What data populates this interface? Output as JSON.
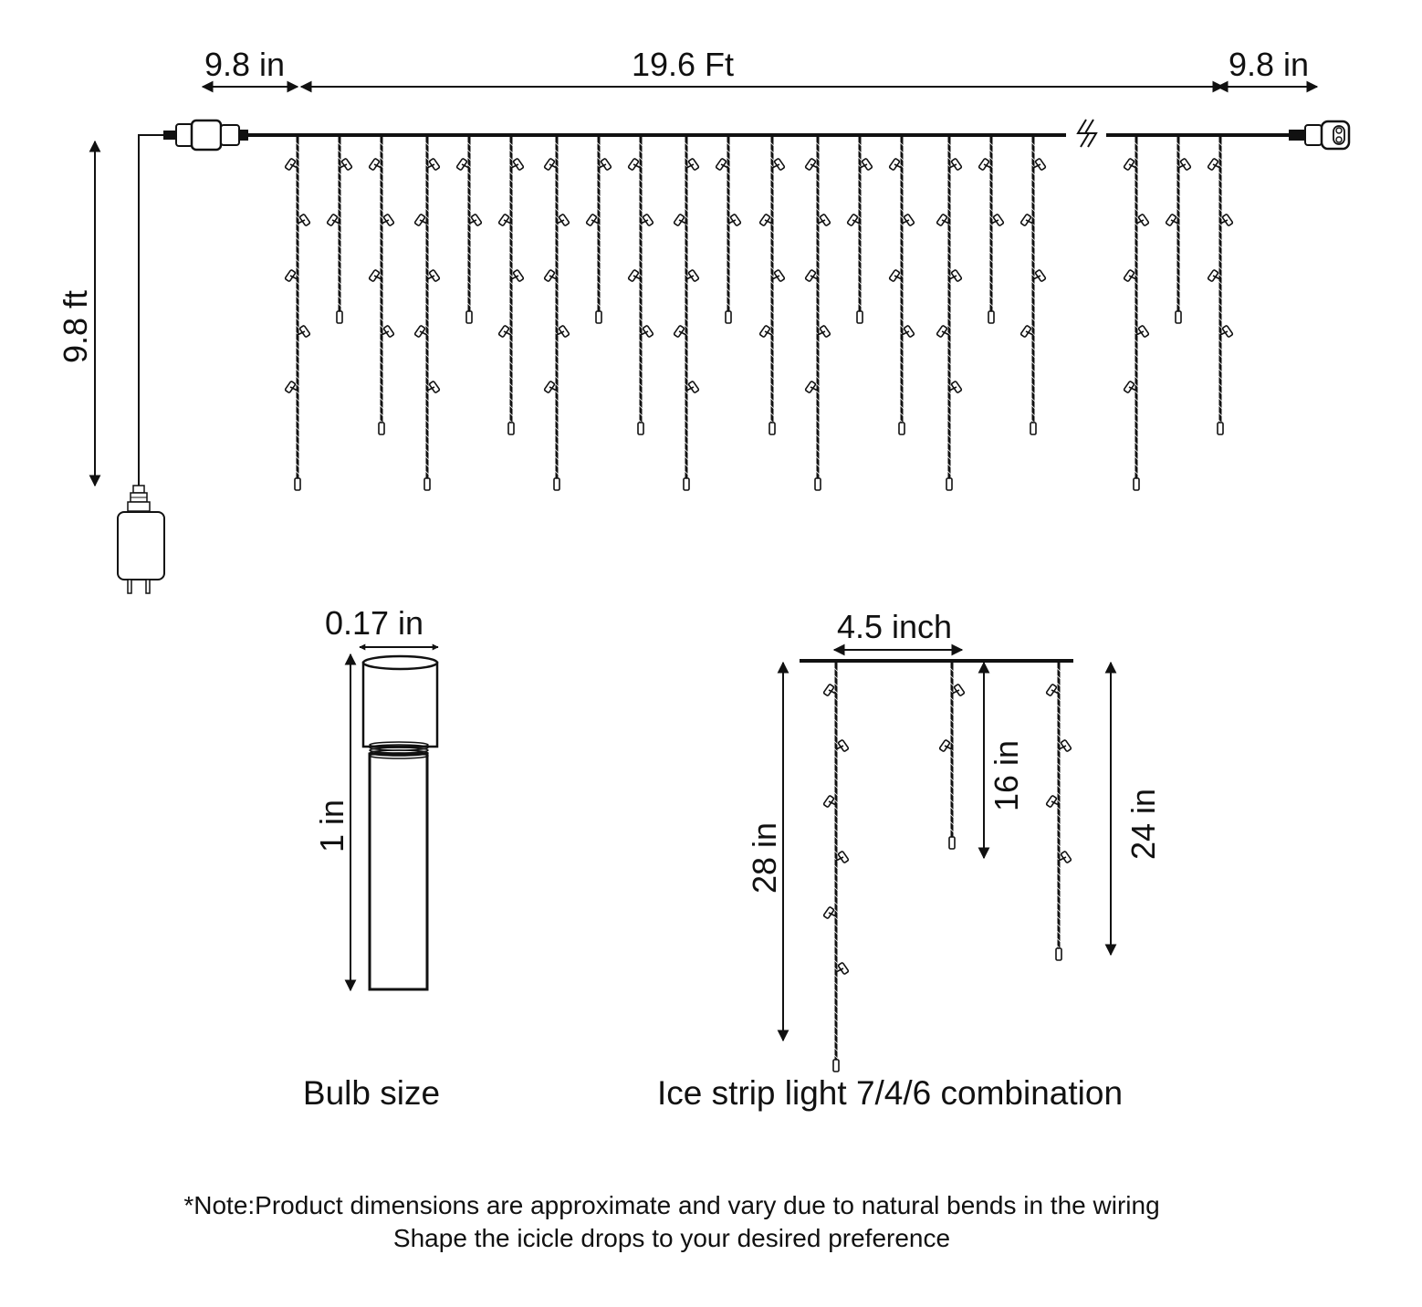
{
  "main_diagram": {
    "left_lead_label": "9.8 in",
    "span_label": "19.6 Ft",
    "right_lead_label": "9.8 in",
    "drop_cord_label": "9.8 ft"
  },
  "bulb_diagram": {
    "width_label": "0.17 in",
    "height_label": "1 in",
    "caption": "Bulb size"
  },
  "combo_diagram": {
    "spacing_label": "4.5 inch",
    "long_drop_label": "28 in",
    "short_drop_label": "16 in",
    "medium_drop_label": "24 in",
    "caption": "Ice strip light 7/4/6 combination"
  },
  "note": {
    "line1": "*Note:Product dimensions are approximate and vary due to natural bends in the wiring",
    "line2": "Shape the icicle drops to your desired preference"
  },
  "colors": {
    "ink": "#111111",
    "bulb_fill": "#ffffff"
  },
  "icons": {
    "break": "break-icon",
    "plug": "plug-icon",
    "adapter": "power-adapter-icon"
  }
}
